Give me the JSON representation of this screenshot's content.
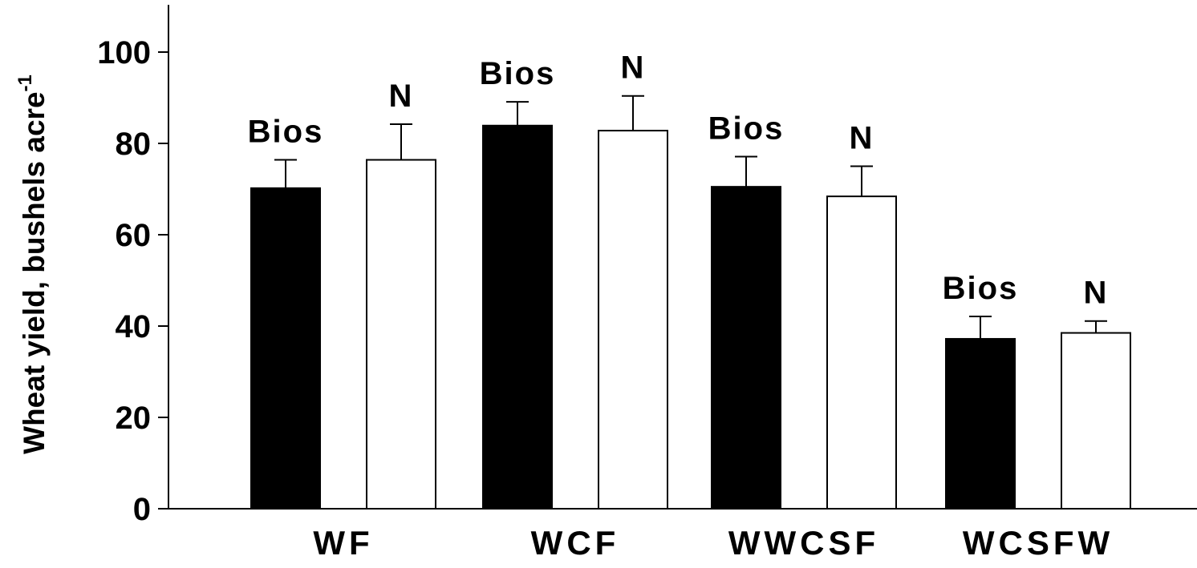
{
  "chart_data": {
    "type": "bar",
    "categories": [
      "WF",
      "WCF",
      "WWCSF",
      "WCSFW"
    ],
    "series": [
      {
        "label": "Bios",
        "fill": "#000000",
        "values": [
          70.2,
          83.9,
          70.5,
          37.2
        ],
        "errors": [
          6.2,
          5.2,
          6.6,
          4.9
        ]
      },
      {
        "label": "N",
        "fill": "#ffffff",
        "values": [
          76.4,
          82.8,
          68.4,
          38.5
        ],
        "errors": [
          7.8,
          7.6,
          6.6,
          2.6
        ]
      }
    ],
    "ylabel": "Wheat yield, bushels acre",
    "ylabel_superscript": "-1",
    "ylim": [
      0,
      100
    ],
    "yticks": [
      "0",
      "20",
      "40",
      "60",
      "80",
      "100"
    ],
    "grid": false,
    "legend": "none"
  }
}
